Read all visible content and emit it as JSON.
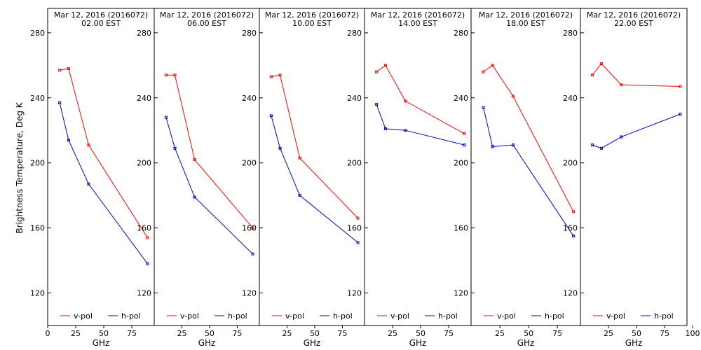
{
  "chart_data": {
    "type": "line",
    "ylabel": "Brightness Temperature, Deg K",
    "xlabel": "GHz",
    "ylim": [
      100,
      295
    ],
    "yticks": [
      120,
      160,
      200,
      240,
      280
    ],
    "colors": {
      "v-pol": "#ff0000",
      "h-pol": "#0000cc"
    },
    "legend": [
      "v-pol",
      "h-pol"
    ],
    "legend_placement": "bottom",
    "grid": false,
    "panels": [
      {
        "title_line1": "Mar 12, 2016 (2016072)",
        "title_line2": "02.00 EST",
        "xlim": [
          0,
          95
        ],
        "xticks": [
          0,
          25,
          50,
          75
        ],
        "series": [
          {
            "name": "v-pol",
            "x": [
              10.7,
              18.7,
              36.5,
              89.0
            ],
            "values": [
              257,
              258,
              211,
              154
            ]
          },
          {
            "name": "h-pol",
            "x": [
              10.7,
              18.7,
              36.5,
              89.0
            ],
            "values": [
              237,
              214,
              187,
              138
            ]
          }
        ]
      },
      {
        "title_line1": "Mar 12, 2016 (2016072)",
        "title_line2": "06.00 EST",
        "xlim": [
          0,
          95
        ],
        "xticks": [
          25,
          50,
          75
        ],
        "series": [
          {
            "name": "v-pol",
            "x": [
              10.7,
              18.7,
              36.5,
              89.0
            ],
            "values": [
              254,
              254,
              202,
              160
            ]
          },
          {
            "name": "h-pol",
            "x": [
              10.7,
              18.7,
              36.5,
              89.0
            ],
            "values": [
              228,
              209,
              179,
              144
            ]
          }
        ]
      },
      {
        "title_line1": "Mar 12, 2016 (2016072)",
        "title_line2": "10.00 EST",
        "xlim": [
          0,
          95
        ],
        "xticks": [
          25,
          50,
          75
        ],
        "series": [
          {
            "name": "v-pol",
            "x": [
              10.7,
              18.7,
              36.5,
              89.0
            ],
            "values": [
              253,
              254,
              203,
              166
            ]
          },
          {
            "name": "h-pol",
            "x": [
              10.7,
              18.7,
              36.5,
              89.0
            ],
            "values": [
              229,
              209,
              180,
              151
            ]
          }
        ]
      },
      {
        "title_line1": "Mar 12, 2016 (2016072)",
        "title_line2": "14.00 EST",
        "xlim": [
          0,
          95
        ],
        "xticks": [
          25,
          50,
          75
        ],
        "series": [
          {
            "name": "v-pol",
            "x": [
              10.7,
              18.7,
              36.5,
              89.0
            ],
            "values": [
              256,
              260,
              238,
              218
            ]
          },
          {
            "name": "h-pol",
            "x": [
              10.7,
              18.7,
              36.5,
              89.0
            ],
            "values": [
              236,
              221,
              220,
              211
            ]
          }
        ]
      },
      {
        "title_line1": "Mar 12, 2016 (2016072)",
        "title_line2": "18.00 EST",
        "xlim": [
          0,
          95
        ],
        "xticks": [
          25,
          50,
          75
        ],
        "series": [
          {
            "name": "v-pol",
            "x": [
              10.7,
              18.7,
              36.5,
              89.0
            ],
            "values": [
              256,
              260,
              241,
              170
            ]
          },
          {
            "name": "h-pol",
            "x": [
              10.7,
              18.7,
              36.5,
              89.0
            ],
            "values": [
              234,
              210,
              211,
              155
            ]
          }
        ]
      },
      {
        "title_line1": "Mar 12, 2016 (2016072)",
        "title_line2": "22.00 EST",
        "xlim": [
          0,
          95
        ],
        "xticks": [
          25,
          50,
          75,
          100
        ],
        "series": [
          {
            "name": "v-pol",
            "x": [
              10.7,
              18.7,
              36.5,
              89.0
            ],
            "values": [
              254,
              261,
              248,
              247
            ]
          },
          {
            "name": "h-pol",
            "x": [
              10.7,
              18.7,
              36.5,
              89.0
            ],
            "values": [
              211,
              209,
              216,
              230
            ]
          }
        ]
      }
    ]
  }
}
